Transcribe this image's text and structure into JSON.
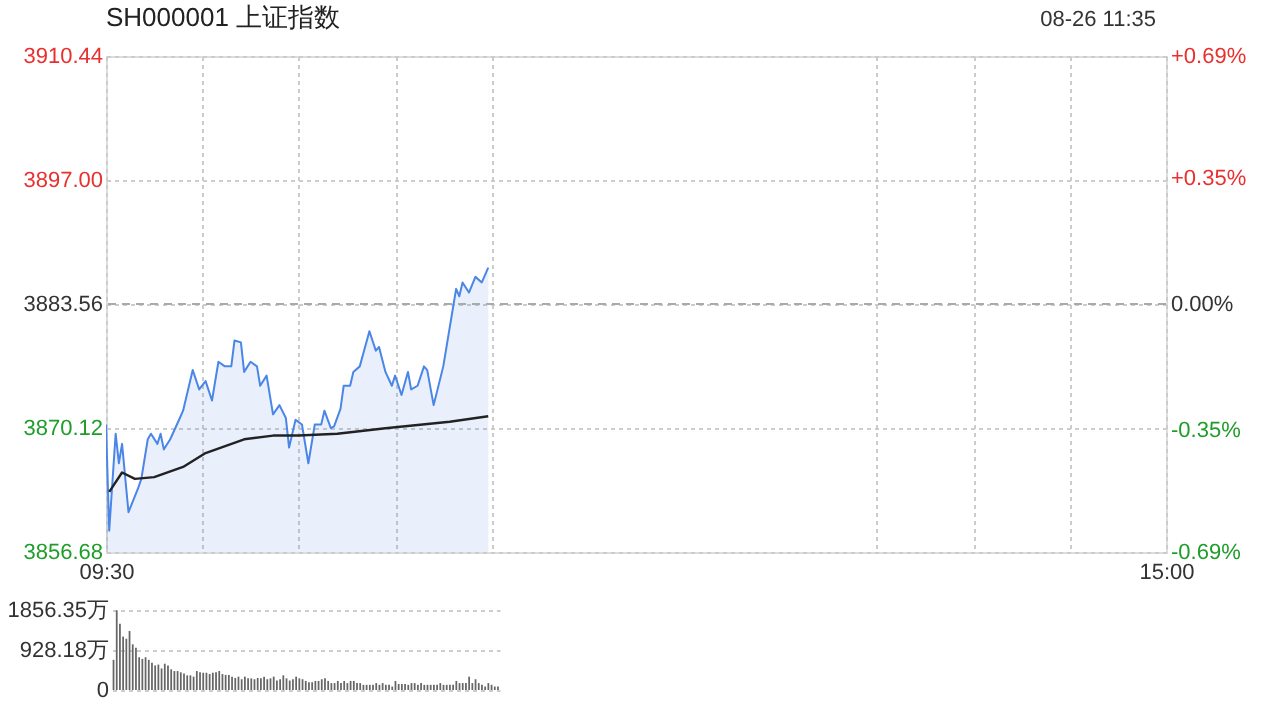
{
  "chart_data": [
    {
      "type": "area",
      "title": "SH000001 上证指数",
      "annotations": [
        "08-26 11:35"
      ],
      "xlim": [
        9.5,
        15
      ],
      "xticks": [
        {
          "value": 9.5,
          "label": "09:30"
        },
        {
          "value": 10,
          "label": null
        },
        {
          "value": 10.5,
          "label": null
        },
        {
          "value": 11,
          "label": null
        },
        {
          "value": 11.5,
          "label": null
        },
        {
          "value": 13.5,
          "label": null
        },
        {
          "value": 14,
          "label": null
        },
        {
          "value": 14.5,
          "label": null
        },
        {
          "value": 15,
          "label": "15:00"
        }
      ],
      "ylim": [
        3856.68,
        3910.44
      ],
      "yticks": [
        3856.68,
        3870.12,
        3883.56,
        {
          "value": 3897,
          "label": "3897.00"
        },
        3910.44
      ],
      "y2lim": [
        -0.69,
        0.69
      ],
      "y2ticks": [
        {
          "value": -0.69,
          "label": "-0.69%"
        },
        {
          "value": -0.35,
          "label": "-0.35%"
        },
        {
          "value": 0,
          "label": "0.00%"
        },
        {
          "value": 0.35,
          "label": "+0.35%"
        },
        {
          "value": 0.69,
          "label": "+0.69%"
        }
      ],
      "ref_lines": [
        {
          "axis": "y2",
          "value": 0,
          "color": "#aaaaaa",
          "line_style": "dashed"
        }
      ],
      "grid": true,
      "series": [
        {
          "color": "#4a86e8",
          "x": [
            9.5,
            9.5167,
            9.55,
            9.5667,
            9.5833,
            9.6167,
            9.6667,
            9.6833,
            9.7167,
            9.7333,
            9.7667,
            9.7833,
            9.8,
            9.8333,
            9.8833,
            9.9,
            9.95,
            9.9833,
            10.0167,
            10.05,
            10.0833,
            10.1167,
            10.15,
            10.1667,
            10.2,
            10.2167,
            10.25,
            10.2833,
            10.3,
            10.3333,
            10.3667,
            10.4,
            10.4333,
            10.45,
            10.4833,
            10.5167,
            10.55,
            10.5833,
            10.6167,
            10.6333,
            10.6667,
            10.6833,
            10.7167,
            10.7333,
            10.7667,
            10.7833,
            10.8167,
            10.8667,
            10.9,
            10.9167,
            10.95,
            10.9833,
            11,
            11.0333,
            11.0667,
            11.0833,
            11.1167,
            11.15,
            11.1667,
            11.2,
            11.25,
            11.3,
            11.3167,
            11.3333,
            11.35,
            11.3833,
            11.4167,
            11.45,
            11.4833
          ],
          "values": [
            3870.5,
            3859,
            3869.5,
            3866.3,
            3868.4,
            3861,
            3863.6,
            3864.6,
            3868.9,
            3869.5,
            3868.4,
            3869.5,
            3867.8,
            3868.9,
            3871.2,
            3872,
            3876.4,
            3874.3,
            3875.2,
            3873.1,
            3877.3,
            3876.8,
            3876.8,
            3879.6,
            3879.4,
            3876.2,
            3877.3,
            3876.8,
            3874.7,
            3875.8,
            3871.6,
            3872.6,
            3871.2,
            3868,
            3871,
            3870.5,
            3866.3,
            3870.5,
            3870.5,
            3872,
            3870.1,
            3870.3,
            3872.2,
            3874.7,
            3874.7,
            3876.2,
            3876.8,
            3880.6,
            3878.5,
            3878.9,
            3876.2,
            3874.7,
            3875.8,
            3873.7,
            3876.2,
            3874.3,
            3874.7,
            3876.8,
            3876.4,
            3872.6,
            3876.8,
            3883.1,
            3885.2,
            3884.4,
            3885.9,
            3884.8,
            3886.5,
            3885.9,
            3887.5
          ]
        },
        {
          "type": "line",
          "color": "#222222",
          "x": [
            9.5167,
            9.5833,
            9.65,
            9.75,
            9.9,
            10.0167,
            10.2167,
            10.3667,
            10.5,
            10.7,
            10.95,
            11.2833,
            11.4833
          ],
          "values": [
            3863.2,
            3865.3,
            3864.6,
            3864.8,
            3865.9,
            3867.4,
            3868.9,
            3869.3,
            3869.3,
            3869.5,
            3870.1,
            3870.8,
            3871.4
          ]
        }
      ]
    },
    {
      "type": "bar",
      "categories": [
        null,
        null,
        null,
        null,
        null,
        null,
        null,
        null,
        null,
        null,
        null,
        null,
        null,
        null,
        null,
        null,
        null,
        null,
        null,
        null,
        null,
        null,
        null,
        null,
        null,
        null,
        null,
        null,
        null,
        null,
        null,
        null,
        null,
        null,
        null,
        null,
        null,
        null,
        null,
        null,
        null,
        null,
        null,
        null,
        null,
        null,
        null,
        null,
        null,
        null,
        null,
        null,
        null,
        null,
        null,
        null,
        null,
        null,
        null,
        null,
        null,
        null,
        null,
        null,
        null,
        null,
        null,
        null,
        null,
        null,
        null,
        null,
        null,
        null,
        null,
        null,
        null,
        null,
        null,
        null,
        null,
        null,
        null,
        null,
        null,
        null,
        null,
        null,
        null,
        null,
        null,
        null,
        null,
        null,
        null,
        null,
        null,
        null,
        null,
        null,
        null,
        null,
        null,
        null,
        null,
        null,
        null,
        null,
        null,
        null,
        null,
        null,
        null,
        null,
        null,
        null,
        null,
        null,
        null,
        null,
        null
      ],
      "ylim": [
        0,
        1856.35
      ],
      "yticks": [
        0,
        {
          "value": 928.18,
          "label": "928.18万"
        },
        {
          "value": 1856.35,
          "label": "1856.35万"
        }
      ],
      "grid": "y",
      "series": [
        {
          "color": "#666666",
          "values": [
            700,
            1850,
            1540,
            1240,
            1190,
            1370,
            1060,
            980,
            760,
            720,
            760,
            700,
            630,
            570,
            590,
            500,
            610,
            570,
            480,
            440,
            440,
            410,
            380,
            340,
            340,
            310,
            440,
            410,
            400,
            400,
            370,
            400,
            410,
            440,
            370,
            350,
            350,
            310,
            280,
            310,
            250,
            310,
            270,
            270,
            250,
            280,
            270,
            310,
            250,
            270,
            310,
            220,
            250,
            340,
            270,
            220,
            250,
            310,
            270,
            250,
            210,
            180,
            180,
            210,
            210,
            250,
            270,
            210,
            160,
            160,
            210,
            160,
            210,
            160,
            210,
            210,
            160,
            160,
            120,
            120,
            120,
            120,
            160,
            120,
            160,
            120,
            120,
            80,
            210,
            140,
            140,
            140,
            120,
            160,
            160,
            120,
            160,
            120,
            120,
            120,
            120,
            120,
            160,
            120,
            120,
            120,
            120,
            210,
            160,
            160,
            160,
            310,
            160,
            250,
            160,
            120,
            80,
            160,
            120,
            80,
            80
          ]
        }
      ]
    }
  ]
}
